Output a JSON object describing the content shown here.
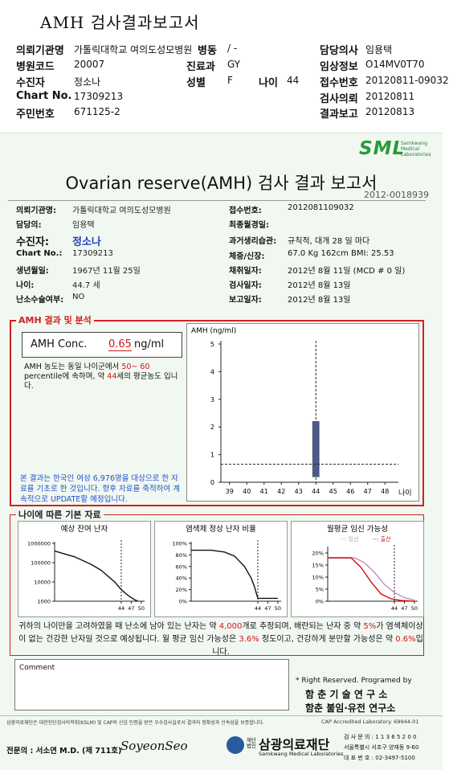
{
  "header": {
    "title": "AMH 검사결과보고서",
    "institution": {
      "label": "의뢰기관명",
      "value": "가톨릭대학교 여의도성모병원"
    },
    "ward": {
      "label": "병동",
      "value": "/ -"
    },
    "doctor": {
      "label": "담당의사",
      "value": "임용택"
    },
    "hospital_code": {
      "label": "병원코드",
      "value": "20007"
    },
    "department": {
      "label": "진료과",
      "value": "GY"
    },
    "clinical_info": {
      "label": "임상정보",
      "value": "O14MV0T70"
    },
    "patient": {
      "label": "수진자",
      "value": "정소나"
    },
    "sex": {
      "label": "성별",
      "value": "F"
    },
    "age": {
      "label": "나이",
      "value": "44"
    },
    "receipt_no": {
      "label": "접수번호",
      "value": "20120811-09032"
    },
    "chart_no": {
      "label": "Chart No.",
      "value": "17309213"
    },
    "request_date": {
      "label": "검사의뢰",
      "value": "20120811"
    },
    "id_no": {
      "label": "주민번호",
      "value": "671125-2"
    },
    "report_date": {
      "label": "결과보고",
      "value": "20120813"
    }
  },
  "report": {
    "logo": "SML",
    "logo_sub": "Samkwang Medical Laboratories",
    "title": "Ovarian reserve(AMH) 검사 결과 보고서",
    "report_no": "2012-0018939",
    "left_info": [
      {
        "label": "의뢰기관명:",
        "value": "가톨릭대학교 여의도성모병원"
      },
      {
        "label": "담당의:",
        "value": "임용택"
      },
      {
        "label": "수진자:",
        "value": "정소나"
      },
      {
        "label": "Chart No.:",
        "value": "17309213"
      },
      {
        "label": "생년월일:",
        "value": "1967년 11월 25일"
      },
      {
        "label": "나이:",
        "value": "44.7 세"
      },
      {
        "label": "난소수술여부:",
        "value": "NO"
      }
    ],
    "right_info": [
      {
        "label": "접수번호:",
        "value": "2012081109032"
      },
      {
        "label": "최종월경일:"
      },
      {
        "label": "과거생리습관:",
        "value": "규칙적, 대개  28 일 마다"
      },
      {
        "label": "체중/신장:",
        "value": "67.0 Kg   162cm   BMI: 25.53"
      },
      {
        "label": "채취일자:",
        "value": "2012년 8월 11일   (MCD # 0 일)"
      },
      {
        "label": "검사일자:",
        "value": "2012년 8월 13일"
      },
      {
        "label": "보고일자:",
        "value": "2012년 8월 13일"
      }
    ]
  },
  "amh": {
    "section_title": "AMH 결과 및 분석",
    "conc_label": "AMH Conc.",
    "conc_value": "0.65",
    "conc_unit": "ng/ml",
    "analysis": [
      {
        "text": "AMH 농도는 동일 나이군에서 "
      },
      {
        "text": "50~ 60",
        "emphasis": true
      },
      {
        "text": " percentile에 속하며, 약 "
      },
      {
        "text": "44",
        "emphasis": true
      },
      {
        "text": "세의 평균농도 입니다."
      }
    ],
    "note": "본 결과는 한국인 여성 6,976명을 대상으로 한 자료를 기초로 한 것입니다. 향후 자료를 축적하여 계속적으로 UPDATE할 예정입니다.",
    "chart": {
      "type": "range",
      "y_label": "AMH (ng/ml)",
      "x_label": "나이",
      "ylim": [
        0,
        5
      ],
      "yticks": [
        0,
        1,
        2,
        3,
        4,
        5
      ],
      "xlim": [
        38.5,
        48.5
      ],
      "xticks": [
        39,
        40,
        41,
        42,
        43,
        44,
        45,
        46,
        47,
        48
      ],
      "age": 44,
      "value": 0.65,
      "range": [
        0.2,
        2.2
      ],
      "color": "#4a5a8a"
    }
  },
  "basic": {
    "section_title": "나이에 따른 기본 자료",
    "age": 44,
    "charts": [
      {
        "type": "line",
        "title": "예상 잔여 난자",
        "log": true,
        "xlim": [
          24,
          51
        ],
        "xticks": [
          44,
          47,
          50
        ],
        "ylim": [
          1000,
          1000000
        ],
        "yticks": [
          1000,
          10000,
          100000,
          1000000
        ],
        "series": [
          {
            "color": "#111111",
            "x": [
              24,
              30,
              35,
              38,
              40,
              42,
              44,
              46,
              48,
              49
            ],
            "values": [
              400000,
              200000,
              80000,
              40000,
              20000,
              10000,
              4000,
              2000,
              1200,
              1000
            ]
          }
        ]
      },
      {
        "type": "line",
        "title": "염색체 정상 난자 비율",
        "xlim": [
          24,
          51
        ],
        "xticks": [
          44,
          47,
          50
        ],
        "ylim": [
          0,
          100
        ],
        "yticks": [
          {
            "value": 0,
            "label": "0%"
          },
          {
            "value": 20,
            "label": "20%"
          },
          {
            "value": 40,
            "label": "40%"
          },
          {
            "value": 60,
            "label": "60%"
          },
          {
            "value": 80,
            "label": "80%"
          },
          {
            "value": 100,
            "label": "100%"
          }
        ],
        "series": [
          {
            "color": "#111111",
            "x": [
              24,
              30,
              34,
              37,
              40,
              42,
              43,
              44,
              47,
              50
            ],
            "values": [
              88,
              88,
              85,
              78,
              60,
              40,
              25,
              5,
              5,
              5
            ]
          }
        ]
      },
      {
        "type": "line",
        "title": "월평균 임신 가능성",
        "xlim": [
          24,
          51
        ],
        "xticks": [
          44,
          47,
          50
        ],
        "ylim": [
          0,
          22
        ],
        "yticks": [
          {
            "value": 0,
            "label": "0%"
          },
          {
            "value": 5,
            "label": "5%"
          },
          {
            "value": 10,
            "label": "10%"
          },
          {
            "value": 15,
            "label": "15%"
          },
          {
            "value": 20,
            "label": "20%"
          }
        ],
        "series": [
          {
            "name": "--: 임신",
            "color": "#c58bc8",
            "x": [
              24,
              32,
              35,
              38,
              41,
              44,
              47,
              50
            ],
            "values": [
              18,
              18,
              16,
              12,
              7,
              3.6,
              1.5,
              0.5
            ]
          },
          {
            "name": "--: 출산",
            "color": "#d01010",
            "x": [
              24,
              31,
              34,
              37,
              40,
              43,
              46,
              50
            ],
            "values": [
              18,
              18,
              14,
              8,
              3,
              1,
              0.3,
              0
            ]
          }
        ]
      }
    ],
    "summary": [
      {
        "text": "귀하의 나이만을 고려하였을 때 난소에 남아 있는 난자는 약 "
      },
      {
        "text": "4,000",
        "emphasis": true
      },
      {
        "text": "개로 추정되며, 배란되는 난자 중 약 "
      },
      {
        "text": "5%",
        "emphasis": true
      },
      {
        "text": "가 염색체이상이 없는 건강한 난자일 것으로 예상됩니다. 월 평균 임신 가능성은 "
      },
      {
        "text": "3.6%",
        "emphasis": true
      },
      {
        "text": " 정도이고, 건강하게 분만할 가능성은 약 "
      },
      {
        "text": "0.6%",
        "emphasis": true
      },
      {
        "text": "입니다."
      }
    ]
  },
  "comment": {
    "label": "Comment"
  },
  "credits": {
    "rights": "* Right Reserved. Programed by",
    "lab1": "함 춘 기 술 연 구 소",
    "lab2": "함춘 불임·유전 연구소"
  },
  "footer": {
    "certification": "삼광의료재단은 대한진단검사의학회(KSLM) 및 CAP의 신임 인증을 받은 우수검사실로서 결과의 정확성과 신속성을 보증합니다.",
    "cap": "CAP Accredited Laboratory.  69944-01",
    "specialist": "전문의 : 서소연 M.D. (제 711호)",
    "signature": "SoyeonSeo",
    "foundation_prefix": "재단법인",
    "foundation": "삼광의료재단",
    "foundation_en": "Samkwang Medical Laboratories",
    "contacts": [
      "검 사 문 의 : 1 1 3 6 5 2 0 0",
      "서울특별시 서초구 양재동 9-60",
      "대 표 번 호 : 02-3497-5100"
    ]
  }
}
